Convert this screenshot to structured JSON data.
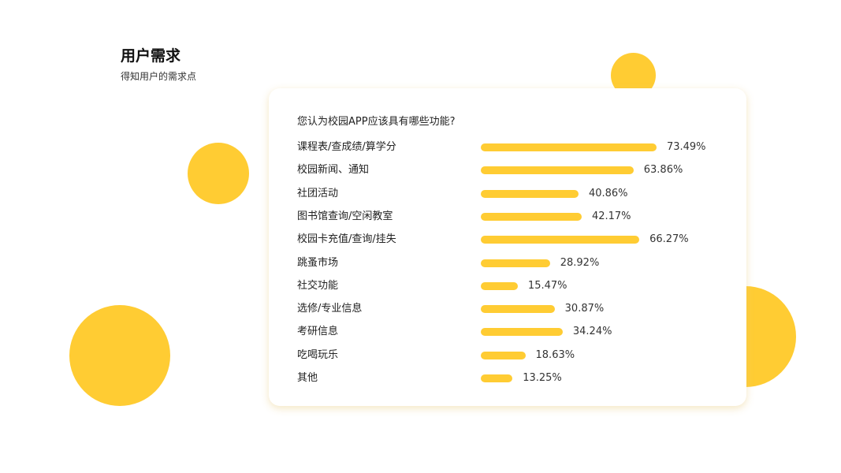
{
  "slide": {
    "title": "用户需求",
    "subtitle": "得知用户的需求点"
  },
  "colors": {
    "accent": "#FFCC33"
  },
  "chart_data": {
    "type": "bar",
    "orientation": "horizontal",
    "title": "您认为校园APP应该具有哪些功能?",
    "categories": [
      "课程表/查成绩/算学分",
      "校园新闻、通知",
      "社团活动",
      "图书馆查询/空闲教室",
      "校园卡充值/查询/挂失",
      "跳蚤市场",
      "社交功能",
      "选修/专业信息",
      "考研信息",
      "吃喝玩乐",
      "其他"
    ],
    "values": [
      73.49,
      63.86,
      40.86,
      42.17,
      66.27,
      28.92,
      15.47,
      30.87,
      34.24,
      18.63,
      13.25
    ],
    "labels": [
      "73.49%",
      "63.86%",
      "40.86%",
      "42.17%",
      "66.27%",
      "28.92%",
      "15.47%",
      "30.87%",
      "34.24%",
      "18.63%",
      "13.25%"
    ],
    "unit": "%",
    "grid": false
  }
}
